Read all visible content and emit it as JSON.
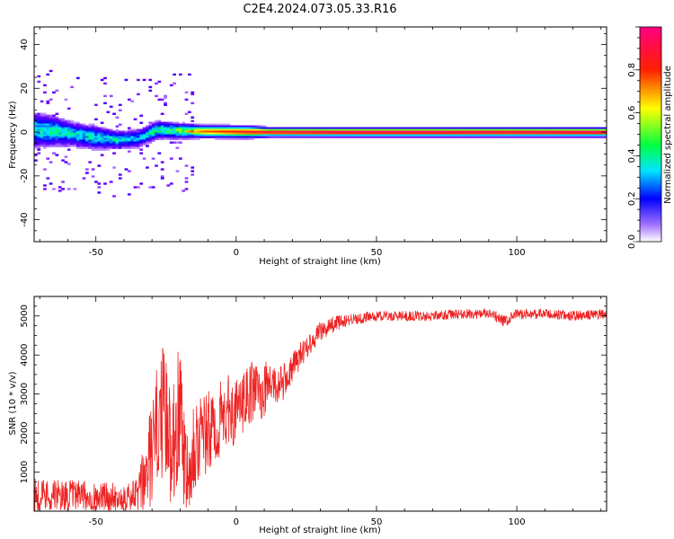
{
  "title": "C2E4.2024.073.05.33.R16",
  "chart_data": [
    {
      "type": "heatmap",
      "xlabel": "Height of straight line (km)",
      "ylabel": "Frequency (Hz)",
      "xlim": [
        -72,
        132
      ],
      "ylim": [
        -50,
        48
      ],
      "x_ticks": [
        -50,
        0,
        50,
        100
      ],
      "y_ticks": [
        40,
        20,
        0,
        -20,
        -40
      ],
      "colorbar": {
        "label": "Normalized spectral amplitude",
        "range": [
          0.0,
          1.0
        ],
        "ticks": [
          0.0,
          0.2,
          0.4,
          0.6,
          0.8
        ],
        "tick_labels": [
          "0.0",
          "0.2",
          "0.4",
          "0.6",
          "0.8"
        ],
        "colormap": [
          "#ffffff",
          "#6a00ff",
          "#0000ff",
          "#00e5ff",
          "#00ff40",
          "#ffff00",
          "#ff2000",
          "#ff00a0"
        ]
      },
      "ridge": [
        {
          "x": -72,
          "freq": 1.0,
          "amp": 0.35,
          "spread": 6
        },
        {
          "x": -65,
          "freq": 0.5,
          "amp": 0.4,
          "spread": 5
        },
        {
          "x": -58,
          "freq": -1.0,
          "amp": 0.35,
          "spread": 4
        },
        {
          "x": -50,
          "freq": -2.5,
          "amp": 0.35,
          "spread": 4
        },
        {
          "x": -42,
          "freq": -3.5,
          "amp": 0.35,
          "spread": 3
        },
        {
          "x": -35,
          "freq": -3.0,
          "amp": 0.3,
          "spread": 3
        },
        {
          "x": -28,
          "freq": 1.0,
          "amp": 0.4,
          "spread": 3
        },
        {
          "x": -20,
          "freq": 0.5,
          "amp": 0.5,
          "spread": 2.5
        },
        {
          "x": -12,
          "freq": 0.3,
          "amp": 0.75,
          "spread": 2
        },
        {
          "x": -4,
          "freq": 0.2,
          "amp": 0.8,
          "spread": 2
        },
        {
          "x": 4,
          "freq": 0.1,
          "amp": 0.85,
          "spread": 2
        },
        {
          "x": 12,
          "freq": 0.0,
          "amp": 0.9,
          "spread": 1.5
        },
        {
          "x": 40,
          "freq": 0.0,
          "amp": 0.95,
          "spread": 1.5
        },
        {
          "x": 70,
          "freq": 0.0,
          "amp": 0.95,
          "spread": 1.5
        },
        {
          "x": 95,
          "freq": 0.0,
          "amp": 0.93,
          "spread": 1.5
        },
        {
          "x": 132,
          "freq": 0.0,
          "amp": 0.95,
          "spread": 1.5
        }
      ]
    },
    {
      "type": "line",
      "xlabel": "Height of straight line (km)",
      "ylabel": "SNR (10 * v/v)",
      "xlim": [
        -72,
        132
      ],
      "ylim": [
        0,
        5500
      ],
      "x_ticks": [
        -50,
        0,
        50,
        100
      ],
      "y_ticks": [
        1000,
        2000,
        3000,
        4000,
        5000
      ],
      "color": "#ee2222",
      "x": [
        -72,
        -65,
        -55,
        -45,
        -36,
        -33,
        -30,
        -28,
        -26,
        -24,
        -22,
        -20,
        -18,
        -15,
        -12,
        -9,
        -6,
        -3,
        0,
        3,
        6,
        9,
        12,
        15,
        18,
        22,
        26,
        30,
        35,
        40,
        45,
        50,
        60,
        70,
        80,
        90,
        96,
        100,
        110,
        120,
        132
      ],
      "y": [
        450,
        400,
        380,
        360,
        380,
        700,
        1500,
        2200,
        2600,
        1800,
        2000,
        2700,
        1300,
        1800,
        1900,
        2000,
        2300,
        2600,
        2500,
        2800,
        3100,
        3000,
        3300,
        3200,
        3400,
        3900,
        4300,
        4600,
        4800,
        4900,
        4950,
        5000,
        5000,
        5000,
        5050,
        5050,
        4850,
        5050,
        5050,
        5000,
        5050
      ],
      "noise": [
        450,
        420,
        400,
        380,
        420,
        900,
        1400,
        1600,
        1700,
        1600,
        1700,
        1800,
        1600,
        1300,
        1200,
        1100,
        1000,
        900,
        850,
        800,
        800,
        700,
        650,
        500,
        450,
        350,
        300,
        250,
        200,
        160,
        150,
        130,
        130,
        130,
        130,
        130,
        150,
        130,
        130,
        130,
        130
      ]
    }
  ]
}
